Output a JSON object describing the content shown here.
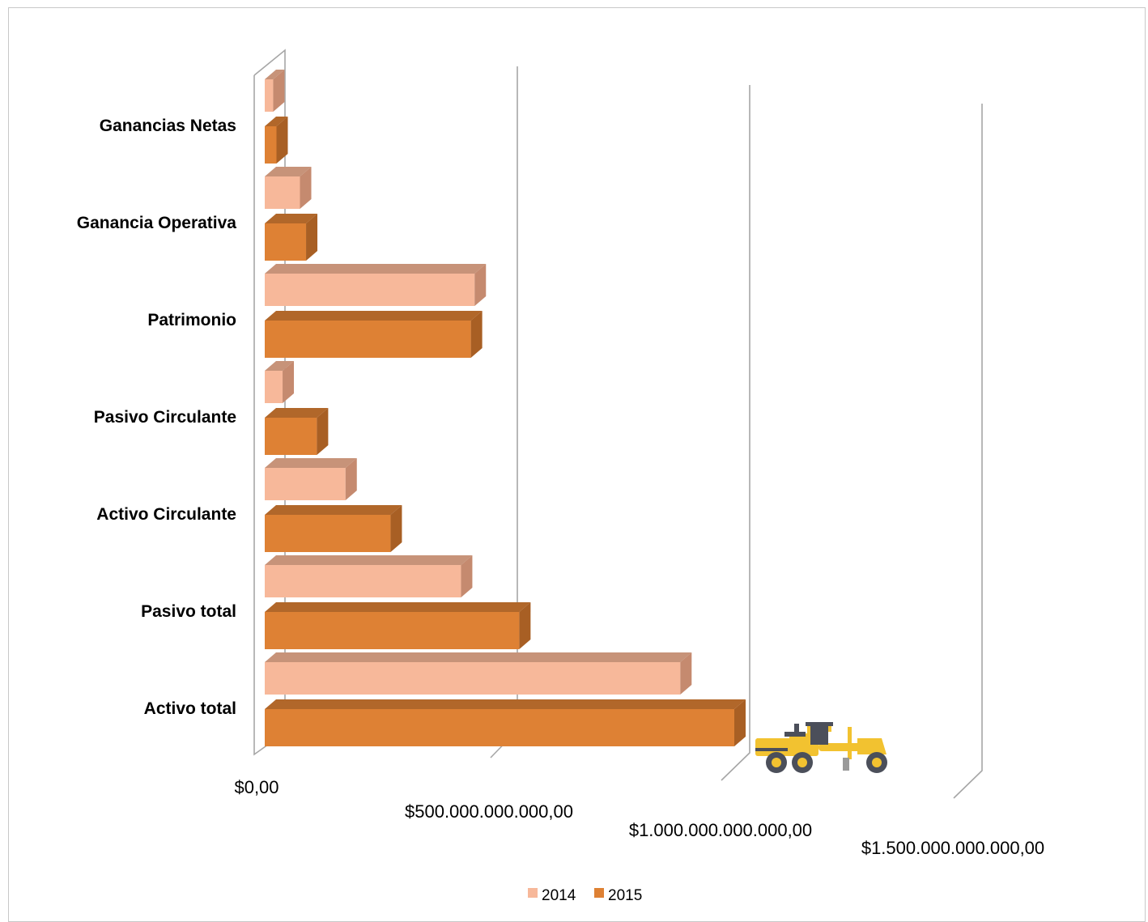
{
  "chart_data": {
    "type": "bar",
    "orientation": "horizontal",
    "style": "3d",
    "categories": [
      "Activo total",
      "Pasivo total",
      "Activo Circulante",
      "Pasivo Circulante",
      "Patrimonio",
      "Ganancia Operativa",
      "Ganancias Netas"
    ],
    "series": [
      {
        "name": "2014",
        "color": "#f7b89a",
        "values": [
          885000000000,
          418000000000,
          172000000000,
          38000000000,
          447000000000,
          75000000000,
          18000000000
        ]
      },
      {
        "name": "2015",
        "color": "#de8134",
        "values": [
          1000000000000,
          542000000000,
          268000000000,
          111000000000,
          439000000000,
          88000000000,
          25000000000
        ]
      }
    ],
    "x_ticks": [
      "$0,00",
      "$500.000.000.000,00",
      "$1.000.000.000.000,00",
      "$1.500.000.000.000,00"
    ],
    "xlim": [
      0,
      1500000000000
    ],
    "legend_position": "bottom",
    "gridlines": true,
    "decoration_icon": "motor-grader-icon"
  }
}
